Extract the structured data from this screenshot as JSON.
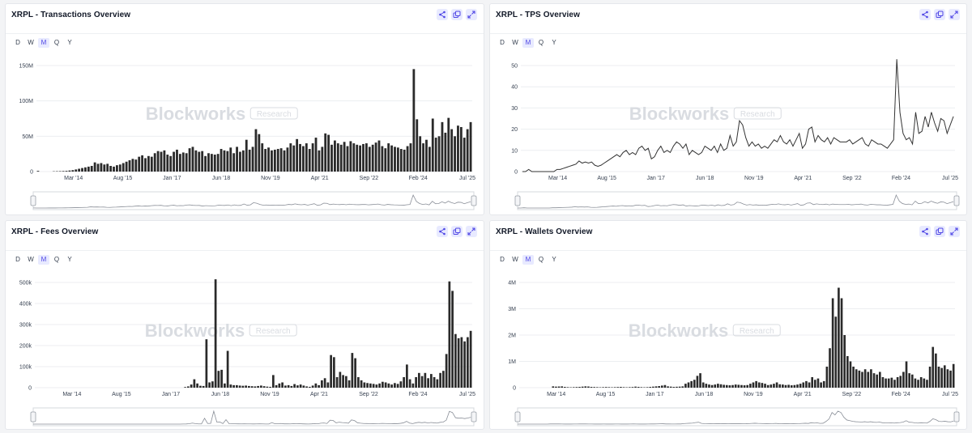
{
  "colors": {
    "bar": "#2a2a2a",
    "line": "#333333",
    "accent": "#4f46e5",
    "grid": "#eceef1",
    "watermark": "#d9dce1"
  },
  "range_options": [
    "D",
    "W",
    "M",
    "Q",
    "Y"
  ],
  "active_range": "M",
  "header_icons": [
    "share-icon",
    "copy-icon",
    "expand-icon"
  ],
  "watermark": {
    "brand": "Blockworks",
    "tag": "Research"
  },
  "x_axis_ticks": [
    "Mar '14",
    "Aug '15",
    "Jan '17",
    "Jun '18",
    "Nov '19",
    "Apr '21",
    "Sep '22",
    "Feb '24",
    "Jul '25"
  ],
  "panels": [
    {
      "title": "XRPL - Transactions Overview"
    },
    {
      "title": "XRPL - TPS Overview"
    },
    {
      "title": "XRPL - Fees Overview"
    },
    {
      "title": "XRPL - Wallets Overview"
    }
  ],
  "chart_data": [
    {
      "type": "bar",
      "title": "XRPL - Transactions Overview",
      "x_range": [
        "Mar 2013",
        "Jul 2025"
      ],
      "yticks": [
        "0",
        "50M",
        "100M",
        "150M"
      ],
      "ylim": [
        0,
        150000000
      ],
      "values": [
        1000000,
        0,
        0,
        0,
        0,
        400000,
        500000,
        600000,
        800000,
        1000000,
        1500000,
        2000000,
        3000000,
        4000000,
        5000000,
        6000000,
        7000000,
        8000000,
        13000000,
        11000000,
        12000000,
        10000000,
        11000000,
        8000000,
        7000000,
        9000000,
        10000000,
        12000000,
        14000000,
        16000000,
        18000000,
        17000000,
        21000000,
        23000000,
        19000000,
        22000000,
        21000000,
        26000000,
        29000000,
        28000000,
        30000000,
        24000000,
        22000000,
        28000000,
        31000000,
        25000000,
        27000000,
        26000000,
        33000000,
        35000000,
        30000000,
        28000000,
        29000000,
        22000000,
        26000000,
        25000000,
        24000000,
        25000000,
        32000000,
        30000000,
        29000000,
        34000000,
        26000000,
        35000000,
        28000000,
        30000000,
        45000000,
        31000000,
        35000000,
        60000000,
        53000000,
        40000000,
        32000000,
        34000000,
        30000000,
        31000000,
        32000000,
        33000000,
        30000000,
        34000000,
        40000000,
        37000000,
        46000000,
        39000000,
        36000000,
        40000000,
        32000000,
        40000000,
        48000000,
        30000000,
        35000000,
        54000000,
        52000000,
        38000000,
        44000000,
        40000000,
        38000000,
        42000000,
        36000000,
        43000000,
        40000000,
        38000000,
        37000000,
        39000000,
        40000000,
        35000000,
        38000000,
        41000000,
        44000000,
        36000000,
        33000000,
        40000000,
        37000000,
        35000000,
        34000000,
        32000000,
        31000000,
        36000000,
        40000000,
        145000000,
        74000000,
        50000000,
        40000000,
        45000000,
        35000000,
        75000000,
        48000000,
        50000000,
        70000000,
        55000000,
        76000000,
        60000000,
        50000000,
        65000000,
        63000000,
        48000000,
        60000000,
        70000000
      ]
    },
    {
      "type": "line",
      "title": "XRPL - TPS Overview",
      "x_range": [
        "Mar 2013",
        "Jul 2025"
      ],
      "yticks": [
        "0",
        "10",
        "20",
        "30",
        "40",
        "50"
      ],
      "ylim": [
        0,
        50
      ],
      "values": [
        0,
        0,
        1,
        0,
        0,
        0,
        0,
        0,
        0,
        0,
        0,
        1,
        1,
        1.5,
        2,
        2.5,
        3,
        3.5,
        5,
        4,
        4.5,
        4,
        4.5,
        3,
        2.5,
        3,
        4,
        5,
        6,
        7,
        8,
        7,
        9,
        10,
        8,
        9,
        8,
        11,
        12,
        10,
        11,
        6,
        7,
        10,
        12,
        9,
        10,
        9,
        12,
        14,
        13,
        11,
        13,
        8,
        10,
        9,
        8,
        9,
        12,
        11,
        10,
        12,
        9,
        13,
        10,
        11,
        17,
        12,
        14,
        24,
        22,
        16,
        12,
        14,
        12,
        13,
        11,
        12,
        11,
        13,
        15,
        14,
        17,
        14,
        13,
        15,
        12,
        15,
        18,
        11,
        13,
        20,
        21,
        14,
        17,
        15,
        14,
        16,
        13,
        16,
        15,
        14,
        14,
        14,
        15,
        13,
        14,
        15,
        16,
        13,
        12,
        15,
        14,
        13,
        13,
        12,
        11,
        13,
        15,
        53,
        28,
        18,
        15,
        16,
        13,
        28,
        18,
        19,
        26,
        21,
        28,
        23,
        19,
        25,
        24,
        18,
        22,
        26
      ]
    },
    {
      "type": "bar",
      "title": "XRPL - Fees Overview",
      "x_range": [
        "Mar 2013",
        "Jul 2025"
      ],
      "yticks": [
        "0",
        "100k",
        "200k",
        "300k",
        "400k",
        "500k"
      ],
      "ylim": [
        0,
        500000
      ],
      "values": [
        0,
        0,
        0,
        0,
        0,
        0,
        0,
        0,
        0,
        0,
        0,
        0,
        0,
        0,
        0,
        0,
        0,
        0,
        0,
        0,
        0,
        0,
        0,
        0,
        0,
        0,
        0,
        0,
        0,
        0,
        0,
        0,
        0,
        0,
        0,
        0,
        0,
        0,
        0,
        0,
        0,
        0,
        0,
        0,
        0,
        0,
        0,
        0,
        0,
        3000,
        6000,
        15000,
        40000,
        20000,
        9000,
        8000,
        230000,
        25000,
        30000,
        515000,
        80000,
        85000,
        20000,
        175000,
        15000,
        12000,
        12000,
        10000,
        9000,
        10000,
        8000,
        7000,
        6000,
        8000,
        10000,
        7000,
        5000,
        4000,
        60000,
        12000,
        20000,
        25000,
        10000,
        12000,
        8000,
        17000,
        11000,
        15000,
        10000,
        6000,
        4000,
        10000,
        20000,
        12000,
        35000,
        45000,
        25000,
        155000,
        145000,
        50000,
        75000,
        60000,
        55000,
        35000,
        165000,
        140000,
        50000,
        35000,
        25000,
        22000,
        20000,
        18000,
        15000,
        20000,
        28000,
        25000,
        20000,
        15000,
        22000,
        18000,
        30000,
        50000,
        110000,
        40000,
        20000,
        50000,
        70000,
        55000,
        70000,
        45000,
        65000,
        50000,
        40000,
        70000,
        80000,
        160000,
        505000,
        460000,
        255000,
        235000,
        240000,
        220000,
        240000,
        270000
      ]
    },
    {
      "type": "bar",
      "title": "XRPL - Wallets Overview",
      "x_range": [
        "Mar 2013",
        "Jul 2025"
      ],
      "yticks": [
        "0",
        "1M",
        "2M",
        "3M",
        "4M"
      ],
      "ylim": [
        0,
        4000000
      ],
      "values": [
        0,
        0,
        0,
        0,
        0,
        0,
        0,
        0,
        0,
        0,
        0,
        50000,
        40000,
        45000,
        50000,
        30000,
        20000,
        15000,
        20000,
        25000,
        30000,
        40000,
        50000,
        45000,
        30000,
        25000,
        20000,
        15000,
        20000,
        25000,
        20000,
        15000,
        20000,
        25000,
        30000,
        20000,
        15000,
        20000,
        25000,
        40000,
        30000,
        20000,
        15000,
        20000,
        30000,
        40000,
        50000,
        60000,
        80000,
        100000,
        50000,
        40000,
        30000,
        35000,
        40000,
        50000,
        150000,
        200000,
        250000,
        300000,
        450000,
        550000,
        200000,
        150000,
        120000,
        100000,
        120000,
        150000,
        130000,
        110000,
        100000,
        90000,
        100000,
        120000,
        110000,
        100000,
        90000,
        100000,
        150000,
        200000,
        250000,
        200000,
        180000,
        150000,
        100000,
        120000,
        150000,
        200000,
        130000,
        120000,
        100000,
        110000,
        90000,
        100000,
        120000,
        150000,
        200000,
        250000,
        200000,
        400000,
        300000,
        350000,
        200000,
        250000,
        800000,
        1500000,
        3400000,
        2700000,
        3800000,
        3400000,
        2000000,
        1200000,
        1000000,
        800000,
        700000,
        650000,
        600000,
        700000,
        600000,
        700000,
        550000,
        500000,
        600000,
        400000,
        350000,
        350000,
        380000,
        300000,
        400000,
        450000,
        600000,
        1000000,
        550000,
        500000,
        350000,
        300000,
        400000,
        350000,
        300000,
        800000,
        1550000,
        1300000,
        800000,
        750000,
        850000,
        700000,
        650000,
        900000
      ]
    }
  ]
}
